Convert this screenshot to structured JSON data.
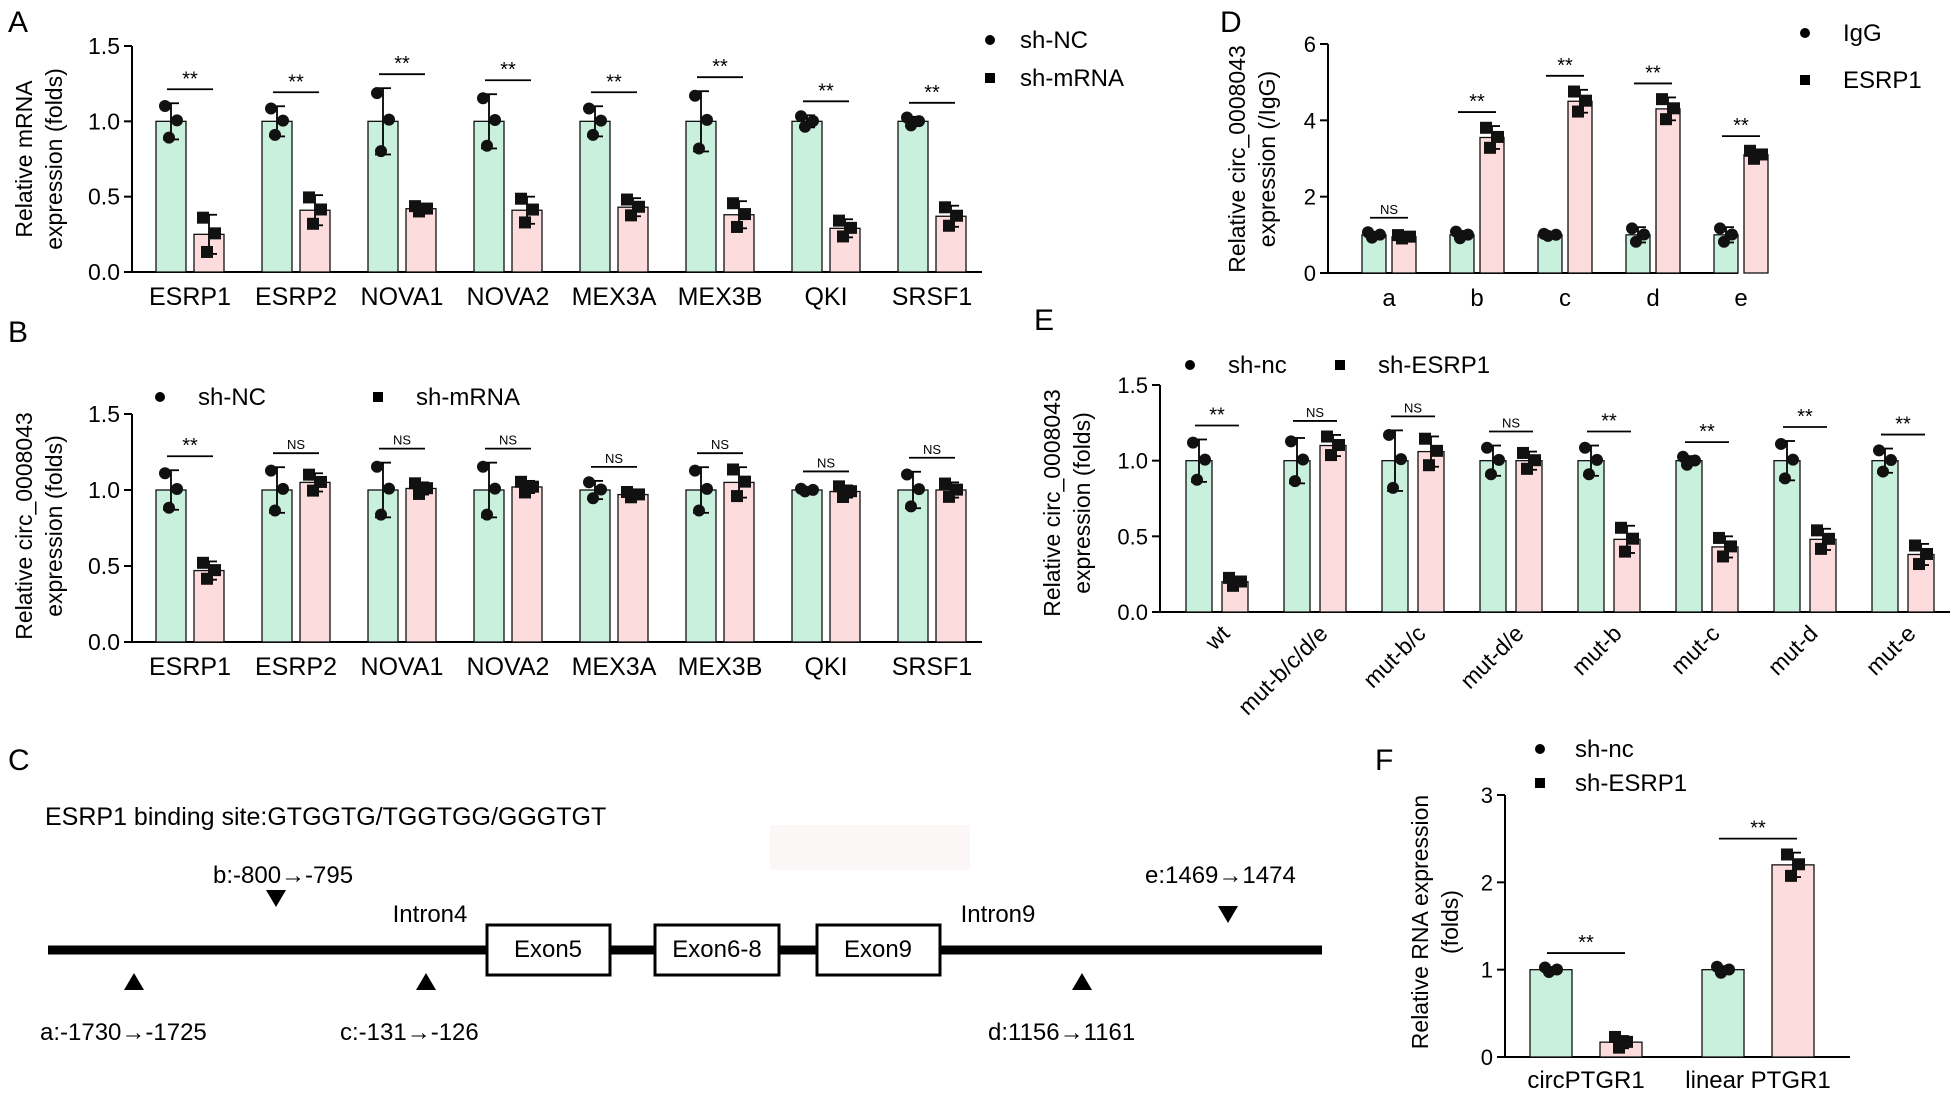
{
  "colors": {
    "group1": "#c8f0dd",
    "group2": "#fcdcdc",
    "stroke": "#111111"
  },
  "diagram": {
    "panel_label": "C",
    "title": "ESRP1 binding site:GTGGTG/TGGTGG/GGGTGT",
    "intron4_label": "Intron4",
    "intron9_label": "Intron9",
    "exons": [
      "Exon5",
      "Exon6-8",
      "Exon9"
    ],
    "site_a": "a:-1730→-1725",
    "site_b": "b:-800→-795",
    "site_c": "c:-131→-126",
    "site_d": "d:1156→1161",
    "site_e": "e:1469→1474"
  },
  "chart_data": [
    {
      "panel": "A",
      "type": "bar",
      "title": "",
      "ylabel": [
        "Relative mRNA",
        "expression (folds)"
      ],
      "xlabel": "",
      "ylim": [
        0,
        1.5
      ],
      "yticks": [
        "0.0",
        "0.5",
        "1.0",
        "1.5"
      ],
      "tick_values": [
        0,
        0.5,
        1.0,
        1.5
      ],
      "legend": [
        "sh-NC",
        "sh-mRNA"
      ],
      "categories": [
        "ESRP1",
        "ESRP2",
        "NOVA1",
        "NOVA2",
        "MEX3A",
        "MEX3B",
        "QKI",
        "SRSF1"
      ],
      "series": [
        {
          "name": "sh-NC",
          "values": [
            1.0,
            1.0,
            1.0,
            1.0,
            1.0,
            1.0,
            1.0,
            1.0
          ],
          "err": [
            0.12,
            0.1,
            0.22,
            0.18,
            0.1,
            0.2,
            0.04,
            0.03
          ]
        },
        {
          "name": "sh-mRNA",
          "values": [
            0.25,
            0.41,
            0.42,
            0.41,
            0.43,
            0.38,
            0.29,
            0.37
          ],
          "err": [
            0.13,
            0.1,
            0.02,
            0.09,
            0.06,
            0.09,
            0.06,
            0.07
          ]
        }
      ],
      "significance": [
        "**",
        "**",
        "**",
        "**",
        "**",
        "**",
        "**",
        "**"
      ]
    },
    {
      "panel": "B",
      "type": "bar",
      "title": "",
      "ylabel": [
        "Relative circ_0008043",
        "expression (folds)"
      ],
      "xlabel": "",
      "ylim": [
        0,
        1.5
      ],
      "yticks": [
        "0.0",
        "0.5",
        "1.0",
        "1.5"
      ],
      "tick_values": [
        0,
        0.5,
        1.0,
        1.5
      ],
      "legend": [
        "sh-NC",
        "sh-mRNA"
      ],
      "categories": [
        "ESRP1",
        "ESRP2",
        "NOVA1",
        "NOVA2",
        "MEX3A",
        "MEX3B",
        "QKI",
        "SRSF1"
      ],
      "series": [
        {
          "name": "sh-NC",
          "values": [
            1.0,
            1.0,
            1.0,
            1.0,
            1.0,
            1.0,
            1.0,
            1.0
          ],
          "err": [
            0.13,
            0.15,
            0.18,
            0.18,
            0.06,
            0.15,
            0.01,
            0.12
          ]
        },
        {
          "name": "sh-mRNA",
          "values": [
            0.47,
            1.05,
            1.01,
            1.02,
            0.97,
            1.05,
            0.99,
            1.0
          ],
          "err": [
            0.06,
            0.06,
            0.04,
            0.04,
            0.02,
            0.1,
            0.04,
            0.05
          ]
        }
      ],
      "significance": [
        "**",
        "NS",
        "NS",
        "NS",
        "NS",
        "NS",
        "NS",
        "NS"
      ]
    },
    {
      "panel": "D",
      "type": "bar",
      "title": "",
      "ylabel": [
        "Relative circ_0008043",
        "expression (/IgG)"
      ],
      "xlabel": "",
      "ylim": [
        0,
        6
      ],
      "yticks": [
        "0",
        "2",
        "4",
        "6"
      ],
      "tick_values": [
        0,
        2,
        4,
        6
      ],
      "legend": [
        "IgG",
        "ESRP1"
      ],
      "categories": [
        "a",
        "b",
        "c",
        "d",
        "e"
      ],
      "series": [
        {
          "name": "IgG",
          "values": [
            1.0,
            1.0,
            1.0,
            1.0,
            1.0
          ],
          "err": [
            0.08,
            0.1,
            0.03,
            0.2,
            0.2
          ]
        },
        {
          "name": "ESRP1",
          "values": [
            0.95,
            3.55,
            4.5,
            4.3,
            3.1
          ],
          "err": [
            0.05,
            0.3,
            0.3,
            0.3,
            0.12
          ]
        }
      ],
      "significance": [
        "NS",
        "**",
        "**",
        "**",
        "**"
      ]
    },
    {
      "panel": "E",
      "type": "bar",
      "title": "",
      "ylabel": [
        "Relative circ_0008043",
        "expression (folds)"
      ],
      "xlabel": "",
      "ylim": [
        0,
        1.5
      ],
      "yticks": [
        "0.0",
        "0.5",
        "1.0",
        "1.5"
      ],
      "tick_values": [
        0,
        0.5,
        1.0,
        1.5
      ],
      "legend": [
        "sh-nc",
        "sh-ESRP1"
      ],
      "categories": [
        "wt",
        "mut-b/c/d/e",
        "mut-b/c",
        "mut-d/e",
        "mut-b",
        "mut-c",
        "mut-d",
        "mut-e"
      ],
      "series": [
        {
          "name": "sh-nc",
          "values": [
            1.0,
            1.0,
            1.0,
            1.0,
            1.0,
            1.0,
            1.0,
            1.0
          ],
          "err": [
            0.14,
            0.15,
            0.2,
            0.1,
            0.1,
            0.03,
            0.13,
            0.08
          ]
        },
        {
          "name": "sh-ESRP1",
          "values": [
            0.2,
            1.1,
            1.06,
            1.0,
            0.48,
            0.43,
            0.48,
            0.38
          ],
          "err": [
            0.03,
            0.07,
            0.1,
            0.06,
            0.09,
            0.07,
            0.07,
            0.07
          ]
        }
      ],
      "significance": [
        "**",
        "NS",
        "NS",
        "NS",
        "**",
        "**",
        "**",
        "**"
      ]
    },
    {
      "panel": "F",
      "type": "bar",
      "title": "",
      "ylabel": [
        "Relative RNA expression",
        "(folds)"
      ],
      "xlabel": "",
      "ylim": [
        0,
        3
      ],
      "yticks": [
        "0",
        "1",
        "2",
        "3"
      ],
      "tick_values": [
        0,
        1,
        2,
        3
      ],
      "legend": [
        "sh-nc",
        "sh-ESRP1"
      ],
      "categories": [
        "circPTGR1",
        "linear PTGR1"
      ],
      "series": [
        {
          "name": "sh-nc",
          "values": [
            1.0,
            1.0
          ],
          "err": [
            0.03,
            0.04
          ]
        },
        {
          "name": "sh-ESRP1",
          "values": [
            0.17,
            2.2
          ],
          "err": [
            0.07,
            0.14
          ]
        }
      ],
      "significance": [
        "**",
        "**"
      ]
    }
  ]
}
